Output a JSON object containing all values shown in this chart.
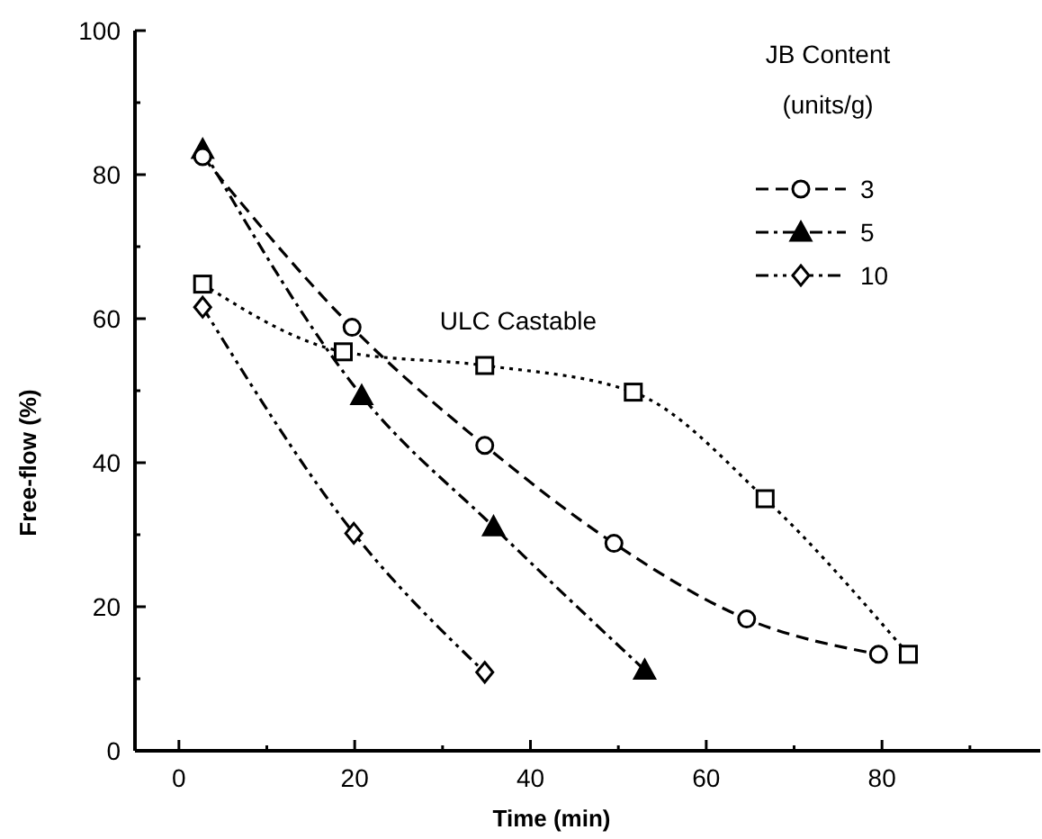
{
  "chart_data": {
    "type": "line",
    "xlabel": "Time (min)",
    "ylabel": "Free-flow (%)",
    "legend_title": "JB Content (units/g)",
    "legend": "top right",
    "grid": false,
    "xlim": [
      -5,
      98
    ],
    "xticks": [
      0,
      {
        "value": 10,
        "label": null
      },
      20,
      {
        "value": 30,
        "label": null
      },
      40,
      {
        "value": 50,
        "label": null
      },
      60,
      {
        "value": 70,
        "label": null
      },
      80,
      {
        "value": 90,
        "label": null
      }
    ],
    "ylim": [
      0,
      100
    ],
    "yticks": [
      0,
      {
        "value": 10,
        "label": null
      },
      20,
      {
        "value": 30,
        "label": null
      },
      40,
      {
        "value": 50,
        "label": null
      },
      60,
      {
        "value": 70,
        "label": null
      },
      80,
      {
        "value": 90,
        "label": null
      },
      100
    ],
    "series": [
      {
        "name": "3",
        "color": "#000000",
        "marker": "circle",
        "line_style": "dashed",
        "x": [
          2.7,
          19.7,
          34.8,
          49.5,
          64.6,
          79.6
        ],
        "values": [
          82.5,
          58.8,
          42.4,
          28.8,
          18.3,
          13.4
        ]
      },
      {
        "name": "5",
        "color": "#000000",
        "marker": "triangle",
        "line_style": "dashdot",
        "x": [
          2.7,
          20.8,
          35.8,
          53
        ],
        "values": [
          83.5,
          49.3,
          31.1,
          11.2
        ]
      },
      {
        "name": "10",
        "color": "#000000",
        "marker": "diamond",
        "line_style": "dashdotdot",
        "x": [
          2.7,
          19.9,
          34.8
        ],
        "values": [
          61.6,
          30.2,
          10.9
        ]
      },
      {
        "name": "ULC Castable",
        "color": "#000000",
        "marker": "square",
        "line_style": "dotted",
        "x": [
          2.7,
          18.7,
          34.8,
          51.7,
          66.7,
          83
        ],
        "values": [
          64.8,
          55.4,
          53.5,
          49.8,
          35.0,
          13.4
        ]
      }
    ]
  }
}
